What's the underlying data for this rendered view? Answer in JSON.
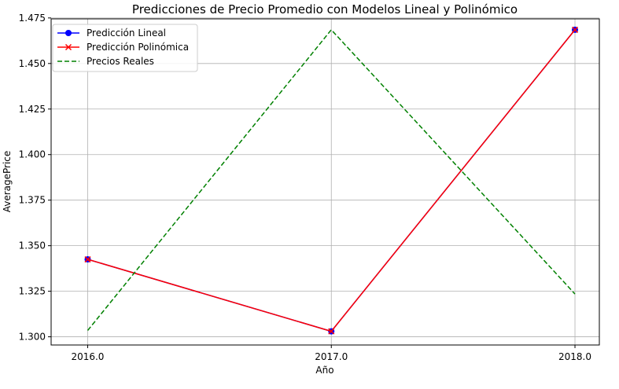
{
  "chart_data": {
    "type": "line",
    "title": "Predicciones de Precio Promedio con Modelos Lineal y Polinómico",
    "xlabel": "Año",
    "ylabel": "AveragePrice",
    "x": [
      2016.0,
      2017.0,
      2018.0
    ],
    "x_tick_labels": [
      "2016.0",
      "2017.0",
      "2018.0"
    ],
    "xlim": [
      2015.85,
      2018.1
    ],
    "y_ticks": [
      1.3,
      1.325,
      1.35,
      1.375,
      1.4,
      1.425,
      1.45,
      1.475
    ],
    "y_tick_labels": [
      "1.300",
      "1.325",
      "1.350",
      "1.375",
      "1.400",
      "1.425",
      "1.450",
      "1.475"
    ],
    "ylim": [
      1.2955,
      1.4745
    ],
    "grid": true,
    "legend_position": "top-left",
    "series": [
      {
        "name": "Predicción Lineal",
        "values": [
          1.3425,
          1.303,
          1.4685
        ],
        "color": "#0000ff",
        "style": "solid",
        "marker": "circle"
      },
      {
        "name": "Predicción Polinómica",
        "values": [
          1.3425,
          1.303,
          1.4685
        ],
        "color": "#ff0000",
        "style": "solid",
        "marker": "x"
      },
      {
        "name": "Precios Reales",
        "values": [
          1.3035,
          1.4685,
          1.3235
        ],
        "color": "#008000",
        "style": "dashed",
        "marker": "none"
      }
    ]
  }
}
